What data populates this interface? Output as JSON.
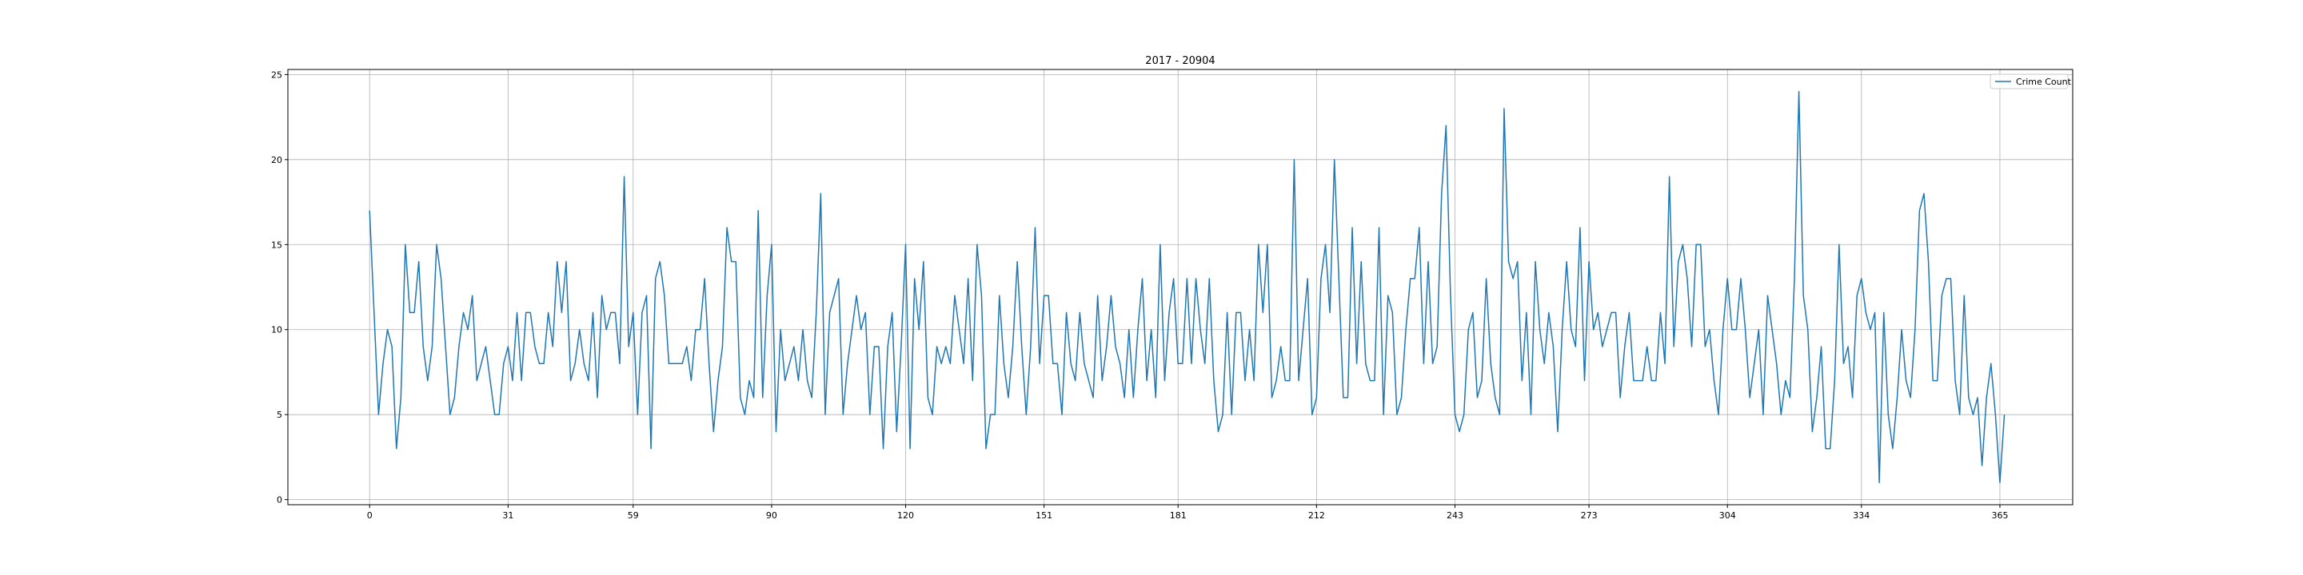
{
  "chart_data": {
    "type": "line",
    "title": "2017 - 20904",
    "xlabel": "",
    "ylabel": "",
    "xlim": [
      -18.3,
      381.3
    ],
    "ylim": [
      -0.3,
      25.3
    ],
    "grid": true,
    "legend_placement": "top-right",
    "x_ticks": [
      0,
      31,
      59,
      90,
      120,
      151,
      181,
      212,
      243,
      273,
      304,
      334,
      365
    ],
    "y_ticks": [
      0,
      5,
      10,
      15,
      20,
      25
    ],
    "series": [
      {
        "name": "Crime Count",
        "color": "#1f77b4",
        "x_start": 0,
        "x_step": 1,
        "values": [
          17,
          11,
          5,
          8,
          10,
          9,
          3,
          6,
          15,
          11,
          11,
          14,
          9,
          7,
          9,
          15,
          13,
          9,
          5,
          6,
          9,
          11,
          10,
          12,
          7,
          8,
          9,
          7,
          5,
          5,
          8,
          9,
          7,
          11,
          7,
          11,
          11,
          9,
          8,
          8,
          11,
          9,
          14,
          11,
          14,
          7,
          8,
          10,
          8,
          7,
          11,
          6,
          12,
          10,
          11,
          11,
          8,
          19,
          9,
          11,
          5,
          11,
          12,
          3,
          13,
          14,
          12,
          8,
          8,
          8,
          8,
          9,
          7,
          10,
          10,
          13,
          8,
          4,
          7,
          9,
          16,
          14,
          14,
          6,
          5,
          7,
          6,
          17,
          6,
          12,
          15,
          4,
          10,
          7,
          8,
          9,
          7,
          10,
          7,
          6,
          11,
          18,
          5,
          11,
          12,
          13,
          5,
          8,
          10,
          12,
          10,
          11,
          5,
          9,
          9,
          3,
          9,
          11,
          4,
          9,
          15,
          3,
          13,
          10,
          14,
          6,
          5,
          9,
          8,
          9,
          8,
          12,
          10,
          8,
          13,
          7,
          15,
          12,
          3,
          5,
          5,
          12,
          8,
          6,
          9,
          14,
          9,
          5,
          9,
          16,
          8,
          12,
          12,
          8,
          8,
          5,
          11,
          8,
          7,
          11,
          8,
          7,
          6,
          12,
          7,
          9,
          12,
          9,
          8,
          6,
          10,
          6,
          10,
          13,
          7,
          10,
          6,
          15,
          7,
          11,
          13,
          8,
          8,
          13,
          8,
          13,
          10,
          8,
          13,
          7,
          4,
          5,
          11,
          5,
          11,
          11,
          7,
          10,
          7,
          15,
          11,
          15,
          6,
          7,
          9,
          7,
          7,
          20,
          7,
          10,
          13,
          5,
          6,
          13,
          15,
          11,
          20,
          13,
          6,
          6,
          16,
          8,
          14,
          8,
          7,
          7,
          16,
          5,
          12,
          11,
          5,
          6,
          10,
          13,
          13,
          16,
          8,
          14,
          8,
          9,
          18,
          22,
          12,
          5,
          4,
          5,
          10,
          11,
          6,
          7,
          13,
          8,
          6,
          5,
          23,
          14,
          13,
          14,
          7,
          11,
          5,
          14,
          10,
          8,
          11,
          9,
          4,
          10,
          14,
          10,
          9,
          16,
          7,
          14,
          10,
          11,
          9,
          10,
          11,
          11,
          6,
          9,
          11,
          7,
          7,
          7,
          9,
          7,
          7,
          11,
          8,
          19,
          9,
          14,
          15,
          13,
          9,
          15,
          15,
          9,
          10,
          7,
          5,
          10,
          13,
          10,
          10,
          13,
          10,
          6,
          8,
          10,
          5,
          12,
          10,
          8,
          5,
          7,
          6,
          13,
          24,
          12,
          10,
          4,
          6,
          9,
          3,
          3,
          7,
          15,
          8,
          9,
          6,
          12,
          13,
          11,
          10,
          11,
          1,
          11,
          5,
          3,
          6,
          10,
          7,
          6,
          10,
          17,
          18,
          14,
          7,
          7,
          12,
          13,
          13,
          7,
          5,
          12,
          6,
          5,
          6,
          2,
          6,
          8,
          5,
          1,
          5
        ]
      }
    ]
  }
}
